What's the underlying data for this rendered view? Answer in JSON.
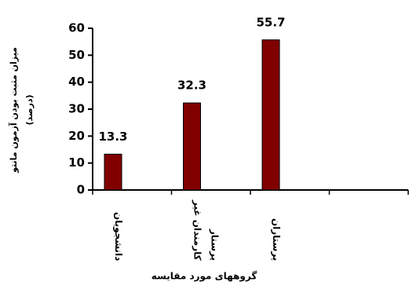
{
  "chart_data": {
    "type": "bar",
    "y_label": [
      "میزان مثبت بودن آزمون مانتو",
      "(درصد)"
    ],
    "x_label": "گروههای مورد مقایسه",
    "categories": [
      "دانشجویان",
      "کارمندان غیر پرستار",
      "پرستاران",
      null
    ],
    "values": [
      13.3,
      32.3,
      55.7,
      null
    ],
    "color": "#800000",
    "ylim": [
      0,
      60
    ],
    "yticks": [
      0,
      10,
      20,
      30,
      40,
      50,
      60
    ],
    "grid": false
  }
}
